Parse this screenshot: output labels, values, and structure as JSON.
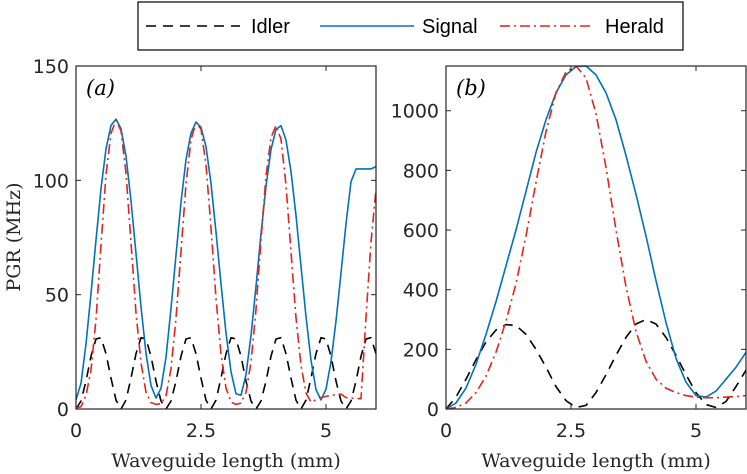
{
  "legend": {
    "entries": [
      {
        "key": "idler",
        "label": "Idler",
        "color": "#000000",
        "dash": "10,7"
      },
      {
        "key": "signal",
        "label": "Signal",
        "color": "#0072BD",
        "dash": ""
      },
      {
        "key": "herald",
        "label": "Herald",
        "color": "#E5231B",
        "dash": "10,4,2,4"
      }
    ]
  },
  "chart_data": [
    {
      "id": "a",
      "type": "line",
      "panel_label": "(a)",
      "xlabel": "Waveguide length (mm)",
      "ylabel": "PGR (MHz)",
      "xlim": [
        0,
        6
      ],
      "ylim": [
        0,
        150
      ],
      "xticks": [
        0,
        2.5,
        5
      ],
      "xtick_labels": [
        "0",
        "2.5",
        "5"
      ],
      "yticks": [
        0,
        50,
        100,
        150
      ],
      "ytick_labels": [
        "0",
        "50",
        "100",
        "150"
      ],
      "series": [
        {
          "name": "Idler",
          "x": [
            0,
            0.1,
            0.2,
            0.3,
            0.4,
            0.5,
            0.6,
            0.7,
            0.8,
            0.9,
            1.0,
            1.1,
            1.2,
            1.3,
            1.4,
            1.5,
            1.6,
            1.7,
            1.8,
            1.9,
            2.0,
            2.1,
            2.2,
            2.3,
            2.4,
            2.5,
            2.6,
            2.7,
            2.8,
            2.9,
            3.0,
            3.1,
            3.2,
            3.3,
            3.4,
            3.5,
            3.6,
            3.7,
            3.8,
            3.9,
            4.0,
            4.1,
            4.2,
            4.3,
            4.4,
            4.5,
            4.6,
            4.7,
            4.8,
            4.9,
            5.0,
            5.1,
            5.2,
            5.3,
            5.4,
            5.5,
            5.6,
            5.7,
            5.8,
            5.9,
            6.0
          ],
          "y": [
            0,
            3.5,
            12.2,
            23.1,
            30.6,
            31.2,
            24.2,
            13.5,
            3.9,
            0,
            3.9,
            13.5,
            24.2,
            31.2,
            30.6,
            23.1,
            12.2,
            3.5,
            0,
            3.5,
            12.2,
            23.1,
            30.6,
            31.2,
            24.2,
            13.5,
            3.9,
            0,
            3.9,
            13.5,
            24.2,
            31.2,
            30.6,
            23.1,
            12.2,
            3.5,
            0,
            3.5,
            12.2,
            23.1,
            30.6,
            31.2,
            24.2,
            13.5,
            3.9,
            0,
            3.9,
            13.5,
            24.2,
            31.2,
            30.6,
            23.1,
            12.2,
            3.5,
            0,
            3.5,
            12.2,
            23.1,
            30.6,
            31.2,
            24.2
          ]
        },
        {
          "name": "Signal",
          "x": [
            0,
            0.1,
            0.2,
            0.3,
            0.4,
            0.5,
            0.6,
            0.7,
            0.8,
            0.9,
            1.0,
            1.1,
            1.2,
            1.3,
            1.4,
            1.5,
            1.6,
            1.7,
            1.8,
            1.9,
            2.0,
            2.1,
            2.2,
            2.3,
            2.4,
            2.5,
            2.6,
            2.7,
            2.8,
            2.9,
            3.0,
            3.1,
            3.2,
            3.3,
            3.4,
            3.5,
            3.6,
            3.7,
            3.8,
            3.9,
            4.0,
            4.1,
            4.2,
            4.3,
            4.4,
            4.5,
            4.6,
            4.7,
            4.8,
            4.9,
            5.0,
            5.1,
            5.2,
            5.3,
            5.4,
            5.5,
            5.6,
            5.7,
            5.8,
            5.9,
            6.0
          ],
          "y": [
            4.0,
            11.3,
            28.5,
            50.5,
            73.9,
            96.3,
            113.8,
            124.0,
            126.8,
            122.6,
            110.6,
            91.1,
            68.1,
            44.7,
            24.3,
            10.3,
            4.8,
            9.0,
            22.6,
            43.9,
            67.4,
            90.4,
            109.1,
            120.6,
            125.5,
            123.2,
            114.7,
            98.6,
            77.4,
            54.8,
            33.3,
            16.3,
            6.7,
            6.0,
            15.0,
            32.2,
            53.6,
            76.6,
            97.4,
            113.5,
            122.3,
            123.9,
            117.6,
            103.8,
            84.6,
            62.4,
            40.4,
            21.4,
            8.5,
            4.0,
            8.7,
            20.7,
            38.5,
            59.4,
            81.0,
            99.4,
            105.0,
            105.0,
            105.0,
            105.0,
            106.0
          ]
        },
        {
          "name": "Herald",
          "x": [
            0,
            0.1,
            0.2,
            0.3,
            0.4,
            0.5,
            0.6,
            0.7,
            0.8,
            0.9,
            1.0,
            1.1,
            1.2,
            1.3,
            1.4,
            1.5,
            1.6,
            1.7,
            1.8,
            1.9,
            2.0,
            2.1,
            2.2,
            2.3,
            2.4,
            2.5,
            2.6,
            2.7,
            2.8,
            2.9,
            3.0,
            3.1,
            3.2,
            3.3,
            3.4,
            3.5,
            3.6,
            3.7,
            3.8,
            3.9,
            4.0,
            4.1,
            4.2,
            4.3,
            4.4,
            4.5,
            4.6,
            4.7,
            4.8,
            4.9,
            5.0,
            5.1,
            5.2,
            5.3,
            5.4,
            5.5,
            5.6,
            5.7,
            5.8,
            5.9,
            6.0
          ],
          "y": [
            0.5,
            1.0,
            6.0,
            16.9,
            39.2,
            71.8,
            102.5,
            120.6,
            126.2,
            121.7,
            103.1,
            72.9,
            42.0,
            20.3,
            7.3,
            2.8,
            2.0,
            2.3,
            5.7,
            17.7,
            39.7,
            68.9,
            98.4,
            117.7,
            125.3,
            122.4,
            106.8,
            79.3,
            48.4,
            24.0,
            9.2,
            3.0,
            2.0,
            2.6,
            7.3,
            20.4,
            43.5,
            74.0,
            101.9,
            118.7,
            124.0,
            118.0,
            98.0,
            68.6,
            39.9,
            19.1,
            7.0,
            3.0,
            4.0,
            5.0,
            5.5,
            6.0,
            6.2,
            6.5,
            5.0,
            4.8,
            4.6,
            4.5,
            40.0,
            73.0,
            96.0
          ]
        }
      ]
    },
    {
      "id": "b",
      "type": "line",
      "panel_label": "(b)",
      "xlabel": "Waveguide length (mm)",
      "ylabel": "",
      "xlim": [
        0,
        6
      ],
      "ylim": [
        0,
        1150
      ],
      "xticks": [
        0,
        2.5,
        5
      ],
      "xtick_labels": [
        "0",
        "2.5",
        "5"
      ],
      "yticks": [
        0,
        200,
        400,
        600,
        800,
        1000
      ],
      "ytick_labels": [
        "0",
        "200",
        "400",
        "600",
        "800",
        "1000"
      ],
      "series": [
        {
          "name": "Idler",
          "x": [
            0,
            0.2,
            0.4,
            0.6,
            0.8,
            1.0,
            1.2,
            1.4,
            1.6,
            1.8,
            2.0,
            2.2,
            2.4,
            2.6,
            2.8,
            3.0,
            3.2,
            3.4,
            3.6,
            3.8,
            4.0,
            4.2,
            4.4,
            4.6,
            4.8,
            5.0,
            5.2,
            5.4,
            5.6,
            5.8,
            6.0
          ],
          "y": [
            0,
            40,
            100,
            165,
            225,
            265,
            283,
            280,
            250,
            200,
            140,
            75,
            28,
            5,
            12,
            55,
            115,
            180,
            240,
            285,
            300,
            285,
            240,
            180,
            115,
            55,
            15,
            5,
            25,
            75,
            130
          ]
        },
        {
          "name": "Signal",
          "x": [
            0,
            0.2,
            0.4,
            0.6,
            0.8,
            1.0,
            1.2,
            1.4,
            1.6,
            1.8,
            2.0,
            2.2,
            2.4,
            2.6,
            2.8,
            3.0,
            3.2,
            3.4,
            3.6,
            3.8,
            4.0,
            4.2,
            4.4,
            4.6,
            4.8,
            5.0,
            5.2,
            5.4,
            5.6,
            5.8,
            6.0
          ],
          "y": [
            0,
            20,
            70,
            150,
            250,
            360,
            480,
            600,
            730,
            860,
            970,
            1060,
            1120,
            1148,
            1150,
            1120,
            1060,
            970,
            850,
            720,
            580,
            430,
            290,
            170,
            90,
            45,
            40,
            60,
            100,
            140,
            190
          ]
        },
        {
          "name": "Herald",
          "x": [
            0,
            0.2,
            0.4,
            0.6,
            0.8,
            1.0,
            1.2,
            1.4,
            1.6,
            1.8,
            2.0,
            2.2,
            2.4,
            2.6,
            2.8,
            3.0,
            3.2,
            3.4,
            3.6,
            3.8,
            4.0,
            4.2,
            4.4,
            4.6,
            4.8,
            5.0,
            5.2,
            5.4,
            5.6,
            5.8,
            6.0
          ],
          "y": [
            0,
            5,
            20,
            55,
            110,
            190,
            295,
            420,
            580,
            760,
            930,
            1060,
            1130,
            1150,
            1110,
            990,
            810,
            600,
            410,
            260,
            160,
            100,
            70,
            55,
            45,
            40,
            38,
            38,
            40,
            42,
            45
          ]
        }
      ]
    }
  ]
}
